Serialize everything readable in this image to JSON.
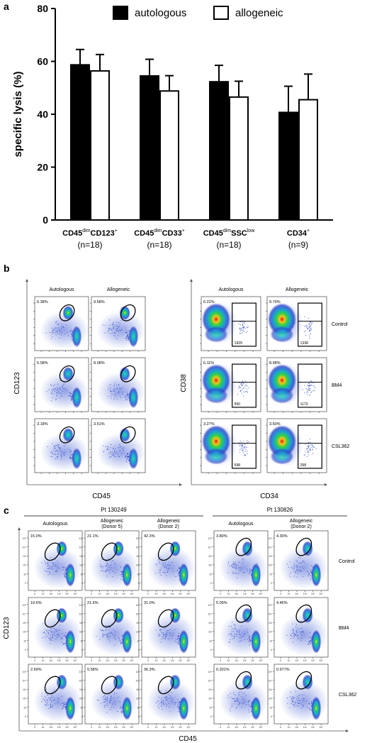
{
  "panels": {
    "a": "a",
    "b": "b",
    "c": "c"
  },
  "chart_data": [
    {
      "type": "bar",
      "panel": "a",
      "title": "",
      "ylabel": "specific lysis (%)",
      "xlabel": "",
      "ylim": [
        0,
        80
      ],
      "yticks": [
        0,
        20,
        40,
        60,
        80
      ],
      "legend_position": "top",
      "categories": [
        {
          "main": "CD45",
          "sup1": "dim",
          "mid": "CD123",
          "sup2": "+",
          "n": "(n=18)"
        },
        {
          "main": "CD45",
          "sup1": "dim",
          "mid": "CD33",
          "sup2": "+",
          "n": "(n=18)"
        },
        {
          "main": "CD45",
          "sup1": "dim",
          "mid": "SSC",
          "sup2": "low",
          "n": "(n=18)"
        },
        {
          "main": "CD34",
          "sup1": "+",
          "mid": "",
          "sup2": "",
          "n": "(n=9)"
        }
      ],
      "series": [
        {
          "name": "autologous",
          "color": "#000000",
          "values": [
            58.7,
            54.5,
            52.3,
            40.7
          ],
          "errors": [
            5.8,
            6.3,
            6.2,
            9.9
          ]
        },
        {
          "name": "allogeneic",
          "color": "#ffffff",
          "values": [
            56.4,
            48.8,
            46.5,
            45.5
          ],
          "errors": [
            6.2,
            5.8,
            6.0,
            9.7
          ]
        }
      ]
    },
    {
      "type": "scatter",
      "panel": "b-left",
      "xlabel": "CD45",
      "ylabel": "CD123",
      "column_labels": [
        "Autologous",
        "Allogeneic"
      ],
      "percentages": [
        [
          "6.38%",
          "9.58%"
        ],
        [
          "5.08%",
          "8.08%"
        ],
        [
          "3.18%",
          "3.51%"
        ]
      ]
    },
    {
      "type": "scatter",
      "panel": "b-right",
      "xlabel": "CD34",
      "ylabel": "CD38",
      "column_labels": [
        "Autologous",
        "Allogeneic"
      ],
      "row_labels": [
        "Control",
        "BM4",
        "CSL362"
      ],
      "percentages": [
        [
          "6.22%",
          "9.79%"
        ],
        [
          "6.11%",
          "8.98%"
        ],
        [
          "3.27%",
          "3.60%"
        ]
      ],
      "counts": [
        [
          "1929",
          "1338"
        ],
        [
          "950",
          "1173"
        ],
        [
          "598",
          "268"
        ]
      ]
    },
    {
      "type": "scatter",
      "panel": "c",
      "xlabel": "CD45",
      "ylabel": "CD123",
      "patients": [
        {
          "label": "Pt 130249",
          "columns": [
            [
              "Autologous"
            ],
            [
              "Allogeneic",
              "(Donor 5)"
            ],
            [
              "Allogeneic",
              "(Donor 2)"
            ]
          ]
        },
        {
          "label": "Pt 130826",
          "columns": [
            [
              "Autologous"
            ],
            [
              "Allogeneic",
              "(Donor 2)"
            ]
          ]
        }
      ],
      "row_labels": [
        "Control",
        "BM4",
        "CSL362"
      ],
      "percentages": [
        [
          "15.0%",
          "21.1%",
          "42.3%",
          "3.80%",
          "4.30%"
        ],
        [
          "19.6%",
          "21.6%",
          "31.0%",
          "5.09%",
          "4.46%"
        ],
        [
          "2.69%",
          "5.58%",
          "36.3%",
          "0.201%",
          "0.977%"
        ]
      ],
      "x_tick_labels": [
        "0",
        "10",
        "10²",
        "10³",
        "10⁴",
        "10⁵"
      ],
      "y_tick_labels": [
        "0",
        "10",
        "10²",
        "10³",
        "10⁴",
        "10⁵"
      ]
    }
  ]
}
